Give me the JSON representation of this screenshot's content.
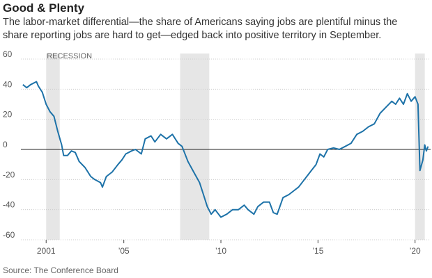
{
  "chart_data": {
    "type": "line",
    "title": "Good & Plenty",
    "subtitle": "The labor-market differential—the share of Americans saying jobs are plentiful minus the share reporting jobs are hard to get—edged back into positive territory in September.",
    "source": "Source: The Conference Board",
    "annotation": "RECESSION",
    "recessions": [
      [
        2001.0,
        2001.7
      ],
      [
        2007.9,
        2009.4
      ],
      [
        2020.0,
        2020.5
      ]
    ],
    "x": [
      1999.8,
      2000.0,
      2000.2,
      2000.5,
      2000.6,
      2000.8,
      2001.0,
      2001.2,
      2001.4,
      2001.6,
      2001.8,
      2001.9,
      2002.1,
      2002.3,
      2002.5,
      2002.7,
      2003.0,
      2003.3,
      2003.5,
      2003.8,
      2003.9,
      2004.1,
      2004.4,
      2004.7,
      2004.9,
      2005.1,
      2005.4,
      2005.6,
      2005.9,
      2006.1,
      2006.4,
      2006.6,
      2006.9,
      2007.2,
      2007.5,
      2007.8,
      2008.0,
      2008.3,
      2008.6,
      2008.9,
      2009.1,
      2009.3,
      2009.5,
      2009.7,
      2010.0,
      2010.3,
      2010.6,
      2010.9,
      2011.2,
      2011.4,
      2011.7,
      2011.9,
      2012.2,
      2012.5,
      2012.7,
      2012.9,
      2013.2,
      2013.5,
      2013.8,
      2014.0,
      2014.3,
      2014.6,
      2014.9,
      2015.1,
      2015.3,
      2015.5,
      2015.8,
      2016.1,
      2016.4,
      2016.7,
      2017.0,
      2017.3,
      2017.6,
      2017.9,
      2018.2,
      2018.5,
      2018.8,
      2019.0,
      2019.2,
      2019.4,
      2019.6,
      2019.8,
      2020.0,
      2020.15,
      2020.25,
      2020.4,
      2020.5,
      2020.58,
      2020.67
    ],
    "series": [
      {
        "color": "#1d72a8",
        "values": [
          43,
          41,
          43,
          45,
          42,
          38,
          30,
          25,
          22,
          12,
          3,
          -4,
          -4,
          -1,
          -2,
          -8,
          -12,
          -18,
          -20,
          -22,
          -25,
          -18,
          -15,
          -10,
          -7,
          -3,
          -1,
          0,
          -3,
          7,
          9,
          5,
          10,
          7,
          10,
          4,
          2,
          -8,
          -15,
          -22,
          -30,
          -38,
          -43,
          -40,
          -45,
          -43,
          -40,
          -40,
          -37,
          -40,
          -43,
          -38,
          -35,
          -35,
          -42,
          -43,
          -32,
          -30,
          -27,
          -25,
          -20,
          -15,
          -10,
          -3,
          -5,
          0,
          1,
          0,
          2,
          4,
          10,
          12,
          15,
          17,
          24,
          28,
          32,
          30,
          34,
          30,
          37,
          32,
          35,
          30,
          -14,
          -7,
          3,
          -1,
          2
        ]
      }
    ],
    "xlim": [
      1999.7,
      2020.8
    ],
    "xticks": [
      2001,
      {
        "value": 2005,
        "label": "’05"
      },
      {
        "value": 2010,
        "label": "’10"
      },
      {
        "value": 2015,
        "label": "’15"
      },
      {
        "value": 2020,
        "label": "’20"
      }
    ],
    "ylim": [
      -60,
      60
    ],
    "yticks": [
      -60,
      -40,
      -20,
      0,
      20,
      40,
      60
    ],
    "grid": true
  }
}
